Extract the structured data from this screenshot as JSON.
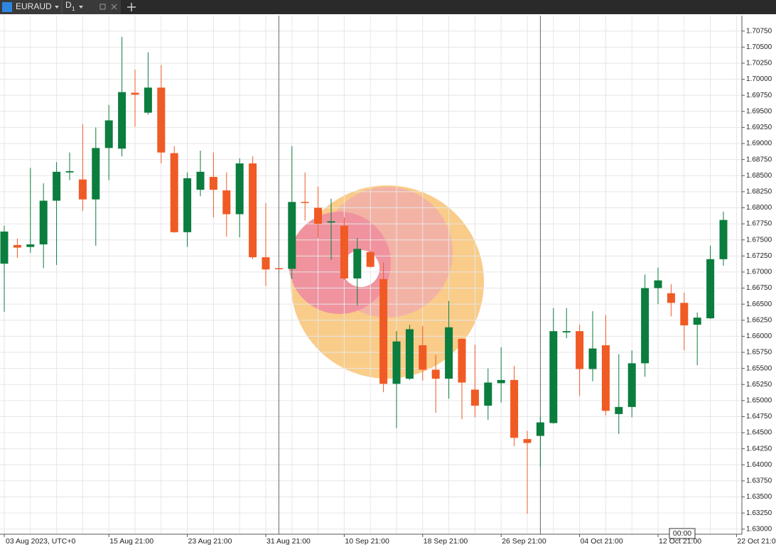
{
  "toolbar": {
    "symbol": "EURAUD",
    "timeframe": "D",
    "timeframe_sub": "1"
  },
  "time_marker": "00:00",
  "chart_data": {
    "type": "candlestick",
    "categories": [
      "03 Aug 2023, UTC+0",
      null,
      null,
      null,
      null,
      null,
      null,
      null,
      "15 Aug 21:00",
      null,
      null,
      null,
      null,
      null,
      "23 Aug 21:00",
      null,
      null,
      null,
      null,
      null,
      "31 Aug 21:00",
      null,
      null,
      null,
      null,
      null,
      "10 Sep 21:00",
      null,
      null,
      null,
      null,
      null,
      "18 Sep 21:00",
      null,
      null,
      null,
      null,
      null,
      "26 Sep 21:00",
      null,
      null,
      null,
      null,
      null,
      "04 Oct 21:00",
      null,
      null,
      null,
      null,
      null,
      "12 Oct 21:00",
      null,
      null,
      null,
      null,
      null,
      "22 Oct 21:00"
    ],
    "open": [
      1.6713,
      1.6742,
      1.6739,
      1.6743,
      1.6811,
      1.6855,
      1.6844,
      1.6813,
      1.6893,
      1.6892,
      1.6979,
      1.6948,
      1.6987,
      1.6885,
      1.6762,
      1.6828,
      1.6848,
      1.6827,
      1.679,
      1.6869,
      1.6723,
      1.6706,
      1.6705,
      1.6809,
      1.68,
      1.6777,
      1.6772,
      1.669,
      1.6731,
      1.6689,
      1.6526,
      1.6534,
      1.6586,
      1.6548,
      1.6534,
      1.6596,
      1.6517,
      1.6492,
      1.6527,
      1.6532,
      1.644,
      1.6445,
      1.6465,
      1.6606,
      1.6608,
      1.6549,
      1.6586,
      1.6479,
      1.649,
      1.6558,
      1.6675,
      1.6667,
      1.6652,
      1.6618,
      1.6628,
      1.672,
      null
    ],
    "high": [
      1.6772,
      1.6752,
      1.6862,
      1.6838,
      1.6871,
      1.6886,
      1.693,
      1.6925,
      1.696,
      1.7066,
      1.7015,
      1.7042,
      1.7022,
      1.6896,
      1.6855,
      1.6889,
      1.6886,
      1.6855,
      1.6877,
      1.688,
      1.6807,
      1.6707,
      1.6896,
      1.6855,
      1.6833,
      1.6814,
      1.6785,
      1.6753,
      1.6733,
      1.6715,
      1.6608,
      1.6618,
      1.6616,
      1.6571,
      1.6655,
      1.6597,
      1.6587,
      1.655,
      1.6583,
      1.6554,
      1.6453,
      1.6475,
      1.6644,
      1.6644,
      1.6618,
      1.6639,
      1.6633,
      1.6572,
      1.6578,
      1.6696,
      1.6707,
      1.6681,
      1.6668,
      1.6637,
      1.6741,
      1.6794,
      null
    ],
    "low": [
      1.6638,
      1.6722,
      1.673,
      1.6706,
      1.6711,
      1.6843,
      1.6795,
      1.6741,
      1.6843,
      1.688,
      1.6926,
      1.6945,
      1.6869,
      1.6761,
      1.6739,
      1.6818,
      1.6785,
      1.6755,
      1.6754,
      1.672,
      1.6678,
      1.6704,
      1.6689,
      1.678,
      1.6753,
      1.6719,
      1.6688,
      1.6648,
      1.6707,
      1.6513,
      1.6457,
      1.6532,
      1.6531,
      1.6481,
      1.6503,
      1.6471,
      1.6474,
      1.647,
      1.6497,
      1.6429,
      1.6324,
      1.6397,
      1.6464,
      1.6597,
      1.6507,
      1.653,
      1.6477,
      1.6448,
      1.6474,
      1.6537,
      1.665,
      1.6631,
      1.6578,
      1.6555,
      1.6627,
      1.671,
      null
    ],
    "close": [
      1.6763,
      1.6738,
      1.6743,
      1.6811,
      1.6856,
      1.6857,
      1.6813,
      1.6893,
      1.6936,
      1.698,
      1.6976,
      1.6987,
      1.6886,
      1.6762,
      1.6846,
      1.6856,
      1.6828,
      1.679,
      1.6869,
      1.6723,
      1.6704,
      1.6705,
      1.6809,
      1.6808,
      1.6775,
      1.6779,
      1.669,
      1.6736,
      1.6708,
      1.6526,
      1.6592,
      1.6611,
      1.6548,
      1.6534,
      1.6614,
      1.6528,
      1.6492,
      1.6528,
      1.6532,
      1.6442,
      1.6434,
      1.6466,
      1.6608,
      1.6608,
      1.6549,
      1.6581,
      1.6484,
      1.649,
      1.6558,
      1.6675,
      1.6687,
      1.6652,
      1.6617,
      1.6629,
      1.672,
      1.6781,
      null
    ],
    "up_color": "#0b7d3e",
    "down_color": "#f05a24",
    "ylim": [
      1.6292,
      1.7099
    ],
    "yticks": [
      {
        "value": 1.63,
        "label": "1.63000"
      },
      {
        "value": 1.6325,
        "label": "1.63250"
      },
      {
        "value": 1.635,
        "label": "1.63500"
      },
      {
        "value": 1.6375,
        "label": "1.63750"
      },
      {
        "value": 1.64,
        "label": "1.64000"
      },
      {
        "value": 1.6425,
        "label": "1.64250"
      },
      {
        "value": 1.645,
        "label": "1.64500"
      },
      {
        "value": 1.6475,
        "label": "1.64750"
      },
      {
        "value": 1.65,
        "label": "1.65000"
      },
      {
        "value": 1.6525,
        "label": "1.65250"
      },
      {
        "value": 1.655,
        "label": "1.65500"
      },
      {
        "value": 1.6575,
        "label": "1.65750"
      },
      {
        "value": 1.66,
        "label": "1.66000"
      },
      {
        "value": 1.6625,
        "label": "1.66250"
      },
      {
        "value": 1.665,
        "label": "1.66500"
      },
      {
        "value": 1.6675,
        "label": "1.66750"
      },
      {
        "value": 1.67,
        "label": "1.67000"
      },
      {
        "value": 1.6725,
        "label": "1.67250"
      },
      {
        "value": 1.675,
        "label": "1.67500"
      },
      {
        "value": 1.6775,
        "label": "1.67750"
      },
      {
        "value": 1.68,
        "label": "1.68000"
      },
      {
        "value": 1.6825,
        "label": "1.68250"
      },
      {
        "value": 1.685,
        "label": "1.68500"
      },
      {
        "value": 1.6875,
        "label": "1.68750"
      },
      {
        "value": 1.69,
        "label": "1.69000"
      },
      {
        "value": 1.6925,
        "label": "1.69250"
      },
      {
        "value": 1.695,
        "label": "1.69500"
      },
      {
        "value": 1.6975,
        "label": "1.69750"
      },
      {
        "value": 1.7,
        "label": "1.70000"
      },
      {
        "value": 1.7025,
        "label": "1.70250"
      },
      {
        "value": 1.705,
        "label": "1.70500"
      },
      {
        "value": 1.7075,
        "label": "1.70750"
      }
    ],
    "grid": true
  }
}
